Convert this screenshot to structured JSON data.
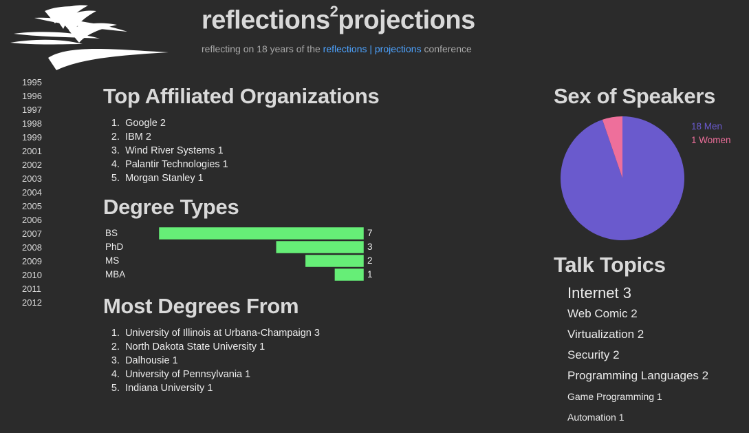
{
  "header": {
    "title_main": "reflections",
    "title_sup": "2",
    "title_end": "projections",
    "tagline_pre": "reflecting on 18 years of the ",
    "tagline_link": "reflections | projections",
    "tagline_post": " conference"
  },
  "years": [
    "1995",
    "1996",
    "1997",
    "1998",
    "1999",
    "2001",
    "2002",
    "2003",
    "2004",
    "2005",
    "2006",
    "2007",
    "2008",
    "2009",
    "2010",
    "2011",
    "2012"
  ],
  "orgs": {
    "heading": "Top Affiliated Organizations",
    "items": [
      {
        "num": "1.",
        "text": "Google 2"
      },
      {
        "num": "2.",
        "text": "IBM 2"
      },
      {
        "num": "3.",
        "text": "Wind River Systems 1"
      },
      {
        "num": "4.",
        "text": "Palantir Technologies 1"
      },
      {
        "num": "5.",
        "text": "Morgan Stanley 1"
      }
    ]
  },
  "degree_types": {
    "heading": "Degree Types"
  },
  "schools": {
    "heading": "Most Degrees From",
    "items": [
      {
        "num": "1.",
        "text": "University of Illinois at Urbana-Champaign 3"
      },
      {
        "num": "2.",
        "text": "North Dakota State University 1"
      },
      {
        "num": "3.",
        "text": "Dalhousie 1"
      },
      {
        "num": "4.",
        "text": "University of Pennsylvania 1"
      },
      {
        "num": "5.",
        "text": "Indiana University 1"
      }
    ]
  },
  "sex": {
    "heading": "Sex of Speakers"
  },
  "topics": {
    "heading": "Talk Topics",
    "items": [
      {
        "text": "Internet 3",
        "size": 22
      },
      {
        "text": "Web Comic 2",
        "size": 17
      },
      {
        "text": "Virtualization 2",
        "size": 17
      },
      {
        "text": "Security 2",
        "size": 17
      },
      {
        "text": "Programming Languages 2",
        "size": 17
      },
      {
        "text": "Game Programming 1",
        "size": 14
      },
      {
        "text": "Automation 1",
        "size": 14
      }
    ]
  },
  "chart_data": [
    {
      "type": "bar",
      "orientation": "horizontal",
      "categories": [
        "BS",
        "PhD",
        "MS",
        "MBA"
      ],
      "values": [
        7,
        3,
        2,
        1
      ],
      "color": "#66ee77"
    },
    {
      "type": "pie",
      "slices": [
        {
          "label": "18 Men",
          "value": 18,
          "color": "#6a5acd"
        },
        {
          "label": "1 Women",
          "value": 1,
          "color": "#ee6f9b"
        }
      ],
      "legend": "right"
    }
  ],
  "colors": {
    "background": "#2b2b2b",
    "link": "#4da3ff",
    "bar": "#66ee77",
    "men": "#6a5acd",
    "women": "#ee6f9b"
  }
}
